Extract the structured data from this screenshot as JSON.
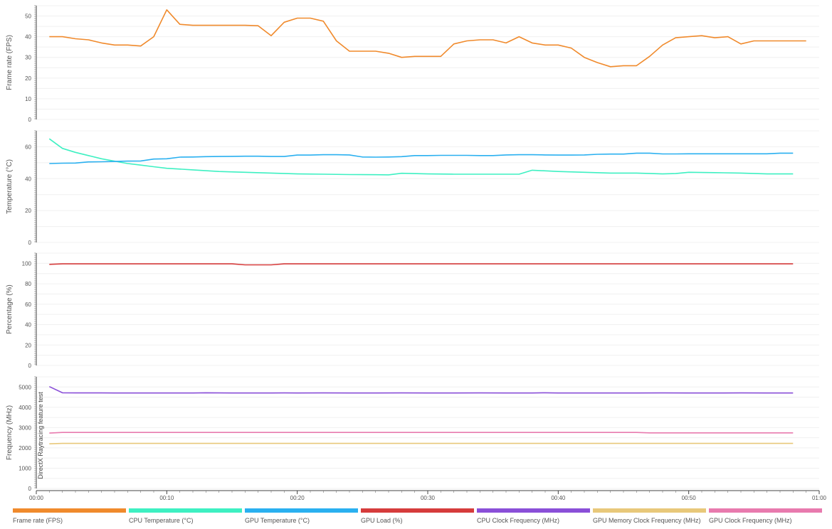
{
  "chart_data": [
    {
      "type": "line",
      "ylabel": "Frame rate (FPS)",
      "ylim": [
        0,
        55
      ],
      "yticks": [
        0,
        10,
        20,
        30,
        40,
        50
      ],
      "series": [
        {
          "name": "Frame rate (FPS)",
          "color": "#f08a2c",
          "x": [
            1,
            2,
            3,
            4,
            5,
            6,
            7,
            8,
            9,
            10,
            11,
            12,
            13,
            14,
            15,
            16,
            17,
            18,
            19,
            20,
            21,
            22,
            23,
            24,
            25,
            26,
            27,
            28,
            29,
            30,
            31,
            32,
            33,
            34,
            35,
            36,
            37,
            38,
            39,
            40,
            41,
            42,
            43,
            44,
            45,
            46,
            47,
            48,
            49,
            50,
            51,
            52,
            53,
            54,
            55,
            56,
            57,
            58,
            59
          ],
          "values": [
            40,
            40,
            39,
            38.5,
            37,
            36,
            36,
            35.5,
            40,
            53,
            46,
            45.5,
            45.5,
            45.5,
            45.5,
            45.5,
            45.3,
            40.5,
            47,
            49,
            49,
            47.5,
            38,
            33,
            33,
            33,
            32,
            30,
            30.5,
            30.5,
            30.5,
            36.5,
            38,
            38.5,
            38.5,
            37,
            40,
            37,
            36,
            36,
            34.5,
            30,
            27.5,
            25.5,
            26,
            26,
            30.5,
            36,
            39.5,
            40,
            40.5,
            39.5,
            40,
            36.5,
            38,
            38,
            38,
            38,
            38
          ]
        }
      ]
    },
    {
      "type": "line",
      "ylabel": "Temperature (°C)",
      "ylim": [
        0,
        70
      ],
      "yticks": [
        0,
        20,
        40,
        60
      ],
      "series": [
        {
          "name": "CPU Temperature (°C)",
          "color": "#3ef0c2",
          "x": [
            1,
            2,
            3,
            4,
            5,
            6,
            7,
            8,
            9,
            10,
            12,
            14,
            16,
            18,
            20,
            22,
            24,
            26,
            27,
            28,
            30,
            32,
            34,
            36,
            37,
            38,
            40,
            42,
            44,
            46,
            48,
            49,
            50,
            52,
            54,
            56,
            58
          ],
          "values": [
            65,
            59,
            56.5,
            54.5,
            52.5,
            51,
            49.5,
            48.5,
            47.5,
            46.5,
            45.5,
            44.5,
            44,
            43.5,
            43,
            42.8,
            42.6,
            42.5,
            42.4,
            43.4,
            43,
            42.8,
            42.8,
            42.8,
            42.8,
            45.3,
            44.5,
            44,
            43.5,
            43.5,
            43,
            43.2,
            44,
            43.8,
            43.5,
            43,
            43
          ]
        },
        {
          "name": "GPU Temperature (°C)",
          "color": "#2ab0f0",
          "x": [
            1,
            2,
            3,
            4,
            5,
            6,
            7,
            8,
            9,
            10,
            11,
            12,
            13,
            14,
            15,
            16,
            17,
            18,
            19,
            20,
            21,
            22,
            23,
            24,
            25,
            26,
            27,
            28,
            29,
            30,
            31,
            32,
            33,
            34,
            35,
            36,
            37,
            38,
            39,
            40,
            41,
            42,
            43,
            44,
            45,
            46,
            47,
            48,
            49,
            50,
            51,
            52,
            53,
            54,
            55,
            56,
            57,
            58
          ],
          "values": [
            49.5,
            49.7,
            49.8,
            50.5,
            50.6,
            50.8,
            51,
            51.1,
            52.3,
            52.5,
            53.5,
            53.6,
            53.8,
            53.9,
            54,
            54.1,
            54.1,
            53.9,
            53.9,
            54.8,
            54.8,
            55,
            55,
            54.9,
            53.6,
            53.5,
            53.6,
            53.8,
            54.5,
            54.5,
            54.6,
            54.6,
            54.6,
            54.5,
            54.5,
            54.9,
            55,
            55,
            54.9,
            54.8,
            54.8,
            54.9,
            55.3,
            55.4,
            55.4,
            56,
            56,
            55.5,
            55.5,
            55.6,
            55.6,
            55.6,
            55.6,
            55.6,
            55.6,
            55.6,
            56,
            56
          ]
        }
      ]
    },
    {
      "type": "line",
      "ylabel": "Percentage (%)",
      "ylim": [
        0,
        110
      ],
      "yticks": [
        0,
        20,
        40,
        60,
        80,
        100
      ],
      "series": [
        {
          "name": "GPU Load (%)",
          "color": "#d63c3c",
          "x": [
            1,
            2,
            3,
            4,
            5,
            6,
            7,
            8,
            9,
            10,
            11,
            12,
            13,
            14,
            15,
            16,
            17,
            18,
            19,
            20,
            21,
            22,
            23,
            24,
            25,
            26,
            27,
            28,
            29,
            30,
            31,
            32,
            33,
            34,
            35,
            36,
            37,
            38,
            39,
            40,
            41,
            42,
            43,
            44,
            45,
            46,
            47,
            48,
            49,
            50,
            51,
            52,
            53,
            54,
            55,
            56,
            57,
            58
          ],
          "values": [
            99,
            99.5,
            99.5,
            99.5,
            99.5,
            99.5,
            99.5,
            99.5,
            99.5,
            99.5,
            99.5,
            99.5,
            99.5,
            99.5,
            99.5,
            98.5,
            98.5,
            98.5,
            99.5,
            99.5,
            99.5,
            99.5,
            99.5,
            99.5,
            99.5,
            99.5,
            99.5,
            99.5,
            99.5,
            99.5,
            99.5,
            99.5,
            99.5,
            99.5,
            99.5,
            99.5,
            99.5,
            99.5,
            99.5,
            99.5,
            99.5,
            99.5,
            99.5,
            99.5,
            99.5,
            99.5,
            99.5,
            99.5,
            99.5,
            99.5,
            99.5,
            99.5,
            99.5,
            99.5,
            99.5,
            99.5,
            99.5,
            99.5
          ]
        }
      ]
    },
    {
      "type": "line",
      "ylabel": "Frequency (MHz)",
      "ylim": [
        0,
        5500
      ],
      "yticks": [
        0,
        1000,
        2000,
        3000,
        4000,
        5000
      ],
      "annotation": "DirectX Raytracing feature test",
      "series": [
        {
          "name": "CPU Clock Frequency (MHz)",
          "color": "#8a4fd8",
          "x": [
            1,
            2,
            3,
            4,
            5,
            6,
            7,
            8,
            9,
            10,
            11,
            12,
            13,
            14,
            15,
            16,
            17,
            18,
            19,
            20,
            22,
            24,
            26,
            28,
            30,
            32,
            34,
            36,
            38,
            39,
            40,
            42,
            44,
            46,
            48,
            50,
            52,
            54,
            56,
            58
          ],
          "values": [
            5020,
            4715,
            4710,
            4710,
            4710,
            4705,
            4705,
            4705,
            4705,
            4705,
            4705,
            4705,
            4715,
            4710,
            4705,
            4705,
            4705,
            4705,
            4710,
            4705,
            4710,
            4705,
            4705,
            4710,
            4705,
            4705,
            4710,
            4705,
            4705,
            4715,
            4705,
            4705,
            4705,
            4705,
            4710,
            4705,
            4705,
            4710,
            4705,
            4705
          ]
        },
        {
          "name": "GPU Memory Clock Frequency (MHz)",
          "color": "#e8c87a",
          "x": [
            1,
            2,
            10,
            20,
            30,
            40,
            50,
            58
          ],
          "values": [
            2200,
            2220,
            2220,
            2220,
            2220,
            2220,
            2220,
            2220
          ]
        },
        {
          "name": "GPU Clock Frequency (MHz)",
          "color": "#e87aae",
          "x": [
            1,
            2,
            10,
            20,
            30,
            40,
            46,
            47,
            50,
            58
          ],
          "values": [
            2730,
            2760,
            2760,
            2760,
            2760,
            2760,
            2760,
            2740,
            2740,
            2740
          ]
        }
      ]
    }
  ],
  "x_axis": {
    "tick_values": [
      0,
      10,
      20,
      30,
      40,
      50,
      60
    ],
    "tick_labels": [
      "00:00",
      "00:10",
      "00:20",
      "00:30",
      "00:40",
      "00:50",
      "01:00"
    ],
    "range": [
      0,
      60
    ]
  },
  "legend": [
    {
      "label": "Frame rate (FPS)",
      "color": "#f08a2c"
    },
    {
      "label": "CPU Temperature (°C)",
      "color": "#3ef0c2"
    },
    {
      "label": "GPU Temperature (°C)",
      "color": "#2ab0f0"
    },
    {
      "label": "GPU Load (%)",
      "color": "#d63c3c"
    },
    {
      "label": "CPU Clock Frequency (MHz)",
      "color": "#8a4fd8"
    },
    {
      "label": "GPU Memory Clock Frequency (MHz)",
      "color": "#e8c87a"
    },
    {
      "label": "GPU Clock Frequency (MHz)",
      "color": "#e87aae"
    }
  ]
}
